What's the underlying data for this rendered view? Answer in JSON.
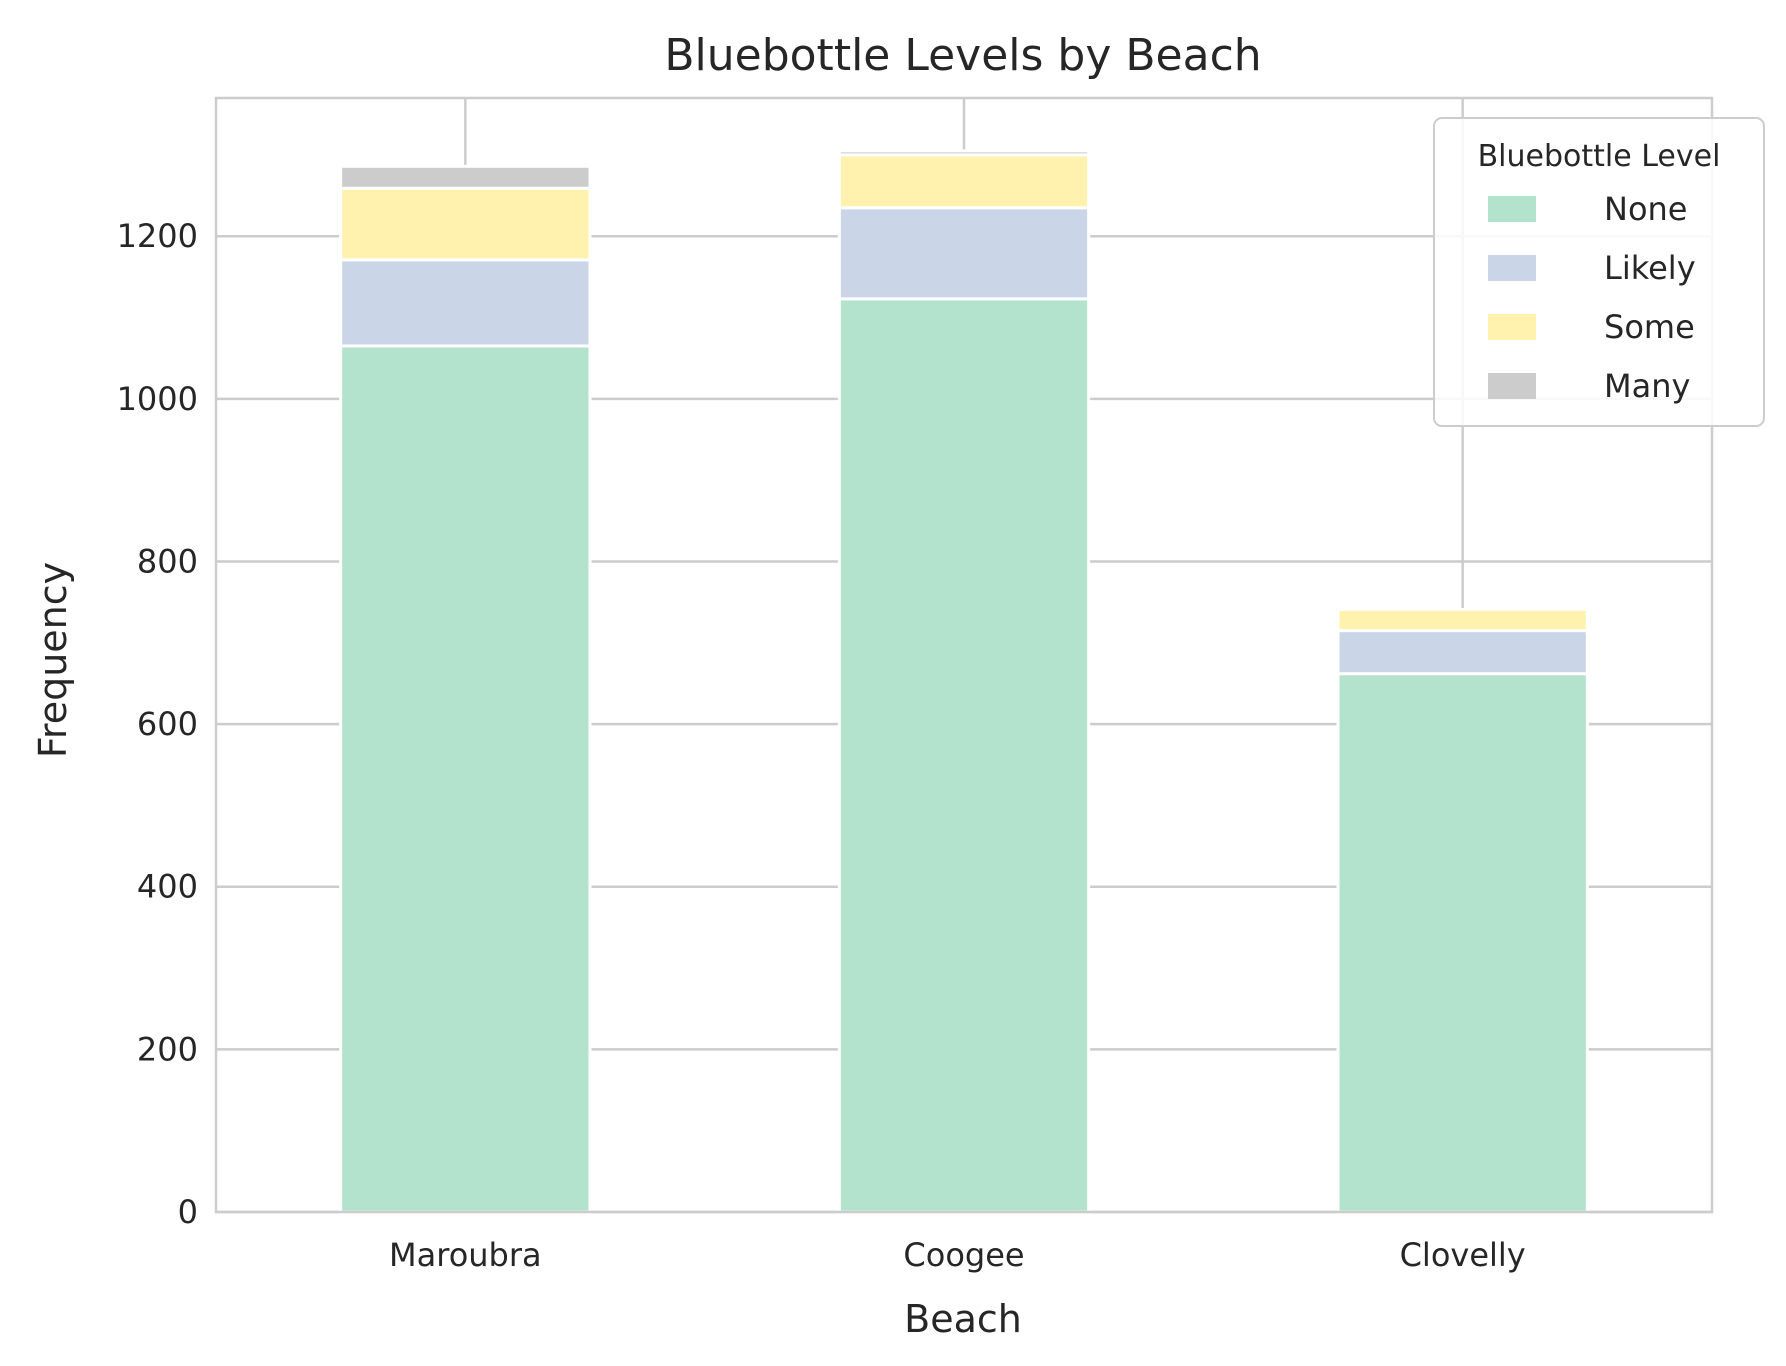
{
  "chart_data": {
    "type": "bar",
    "stacked": true,
    "title": "Bluebottle Levels by Beach",
    "xlabel": "Beach",
    "ylabel": "Frequency",
    "ylim": [
      0,
      1370
    ],
    "yticks": [
      0,
      200,
      400,
      600,
      800,
      1000,
      1200
    ],
    "grid": true,
    "legend_position": "top-right",
    "legend_title": "Bluebottle Level",
    "categories": [
      "Maroubra",
      "Coogee",
      "Clovelly"
    ],
    "series": [
      {
        "name": "None",
        "color": "#b3e2cd",
        "values": [
          1065,
          1123,
          662
        ]
      },
      {
        "name": "Likely",
        "color": "#cbd5e8",
        "values": [
          106,
          112,
          53
        ]
      },
      {
        "name": "Some",
        "color": "#fff2ae",
        "values": [
          88,
          65,
          26
        ]
      },
      {
        "name": "Many",
        "color": "#cccccc",
        "values": [
          27,
          5,
          0
        ]
      }
    ]
  }
}
